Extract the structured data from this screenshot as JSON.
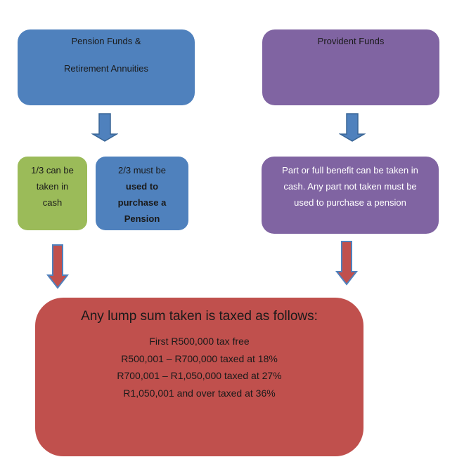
{
  "top": {
    "pension": {
      "line1": "Pension Funds &",
      "line2": "Retirement Annuities"
    },
    "provident": {
      "title": "Provident Funds"
    }
  },
  "middle": {
    "cash_third": [
      "1/3 can be",
      "taken in",
      "cash"
    ],
    "pension_two_thirds": [
      "2/3 must be",
      "used to",
      "purchase a",
      "Pension"
    ],
    "provident_benefit": [
      "Part or full benefit can be taken in",
      "cash. Any part not taken must be",
      "used to purchase a pension"
    ]
  },
  "tax": {
    "title": "Any lump sum taken is taxed as follows:",
    "lines": [
      "First R500,000 tax free",
      "R500,001 – R700,000 taxed at 18%",
      "R700,001 – R1,050,000 taxed at 27%",
      "R1,050,001 and over taxed at 36%"
    ]
  },
  "colors": {
    "blue": "#4f81bd",
    "purple": "#8064a2",
    "green": "#9bbb59",
    "red": "#c0504d"
  }
}
